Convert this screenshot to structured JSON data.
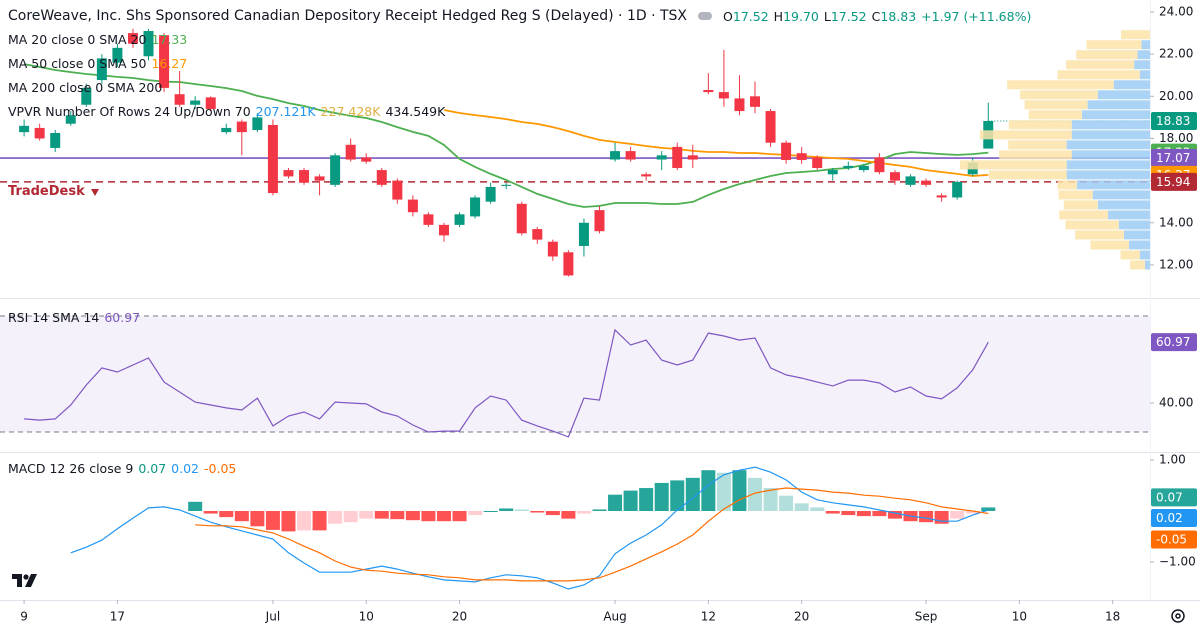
{
  "chart_data": [
    {
      "type": "candlestick",
      "title": "CoreWeave, Inc. Shs Sponsored Canadian Depository Receipt Hedged Reg S (Delayed) · 1D · TSX",
      "ohlc": [
        {
          "key": "O",
          "value": "17.52"
        },
        {
          "key": "H",
          "value": "19.70"
        },
        {
          "key": "L",
          "value": "17.52"
        },
        {
          "key": "C",
          "value": "18.83"
        }
      ],
      "change": "+1.97 (+11.68%)",
      "up_color": "#089981",
      "down_color": "#f23645",
      "open": [
        18.3,
        18.5,
        17.55,
        18.7,
        19.6,
        20.77,
        21.6,
        23.0,
        21.9,
        22.9,
        20.1,
        19.6,
        19.95,
        18.3,
        18.8,
        18.4,
        18.64,
        16.5,
        16.5,
        16.2,
        15.8,
        17.7,
        17.1,
        16.5,
        16.0,
        15.1,
        14.4,
        13.9,
        13.9,
        14.3,
        15.0,
        15.75,
        14.9,
        13.7,
        13.1,
        12.6,
        12.9,
        14.6,
        17.0,
        17.4,
        16.3,
        17.0,
        17.6,
        17.2,
        20.3,
        20.2,
        19.9,
        20.0,
        19.3,
        17.8,
        17.3,
        17.1,
        16.3,
        16.6,
        16.5,
        17.1,
        16.4,
        15.8,
        16.0,
        15.3,
        15.2,
        16.3,
        17.52
      ],
      "high": [
        18.9,
        18.7,
        18.4,
        19.3,
        20.6,
        22.0,
        22.5,
        23.2,
        23.2,
        23.0,
        21.2,
        20.0,
        20.0,
        18.7,
        18.9,
        19.2,
        18.9,
        16.6,
        16.6,
        16.3,
        17.3,
        18.0,
        17.3,
        16.6,
        16.1,
        15.3,
        14.5,
        14.0,
        14.5,
        15.3,
        15.9,
        15.9,
        15.0,
        13.8,
        13.2,
        12.7,
        14.2,
        14.8,
        17.8,
        17.6,
        16.4,
        17.4,
        17.8,
        17.7,
        21.1,
        22.2,
        21.0,
        20.7,
        19.4,
        17.9,
        17.6,
        17.2,
        16.6,
        16.9,
        16.8,
        17.3,
        16.5,
        16.3,
        16.1,
        15.4,
        16.0,
        17.1,
        19.7
      ],
      "low": [
        18.1,
        17.9,
        17.36,
        18.6,
        19.5,
        20.6,
        21.4,
        22.3,
        21.7,
        20.2,
        19.5,
        19.4,
        19.3,
        18.2,
        17.2,
        18.3,
        15.3,
        16.1,
        15.8,
        15.3,
        15.7,
        16.9,
        16.8,
        15.7,
        14.9,
        14.3,
        13.8,
        13.1,
        13.8,
        14.2,
        14.9,
        15.6,
        13.4,
        13.0,
        12.2,
        11.45,
        12.4,
        13.5,
        16.9,
        16.9,
        16.0,
        16.5,
        16.5,
        16.6,
        20.1,
        19.5,
        19.1,
        19.2,
        17.6,
        16.8,
        16.8,
        16.5,
        16.0,
        16.5,
        16.4,
        16.3,
        15.8,
        15.7,
        15.7,
        15.0,
        15.1,
        16.2,
        17.52
      ],
      "close": [
        18.6,
        18.0,
        18.26,
        19.1,
        20.4,
        21.8,
        22.3,
        22.5,
        23.1,
        20.4,
        19.6,
        19.8,
        19.4,
        18.5,
        18.3,
        19.0,
        15.41,
        16.2,
        15.9,
        16.0,
        17.2,
        17.0,
        16.9,
        15.8,
        15.1,
        14.5,
        13.9,
        13.4,
        14.4,
        15.2,
        15.7,
        15.8,
        13.5,
        13.2,
        12.4,
        11.5,
        14.0,
        13.6,
        17.4,
        17.0,
        16.2,
        17.2,
        16.6,
        17.0,
        20.2,
        19.9,
        19.3,
        19.5,
        17.8,
        16.98,
        16.98,
        16.6,
        16.5,
        16.7,
        16.7,
        16.4,
        16.0,
        16.2,
        15.8,
        15.2,
        15.94,
        16.86,
        18.83
      ],
      "series": [
        {
          "name": "MA 20 close 0 SMA 20",
          "color": "#4caf50",
          "values": [
            21.53,
            21.39,
            21.25,
            21.15,
            21.06,
            20.99,
            20.92,
            20.87,
            20.77,
            20.7,
            20.68,
            20.58,
            20.49,
            20.39,
            20.25,
            20.02,
            19.87,
            19.68,
            19.54,
            19.35,
            19.21,
            19.07,
            18.97,
            18.78,
            18.54,
            18.31,
            18.12,
            17.69,
            17.03,
            16.65,
            16.32,
            16.03,
            15.7,
            15.37,
            15.13,
            14.89,
            14.75,
            14.8,
            14.94,
            14.94,
            14.94,
            14.89,
            14.89,
            14.99,
            15.32,
            15.6,
            15.84,
            16.03,
            16.22,
            16.36,
            16.41,
            16.46,
            16.55,
            16.6,
            16.74,
            16.98,
            17.26,
            17.36,
            17.31,
            17.26,
            17.22,
            17.26,
            17.33
          ]
        },
        {
          "name": "MA 50 close 0 SMA 50",
          "color": "#ff9800",
          "values": [
            null,
            null,
            null,
            null,
            null,
            null,
            null,
            null,
            null,
            null,
            null,
            null,
            null,
            null,
            null,
            null,
            null,
            null,
            null,
            null,
            null,
            null,
            null,
            null,
            null,
            null,
            null,
            19.35,
            19.21,
            19.11,
            19.02,
            18.92,
            18.78,
            18.69,
            18.54,
            18.35,
            18.12,
            17.93,
            17.83,
            17.74,
            17.64,
            17.55,
            17.5,
            17.41,
            17.36,
            17.36,
            17.31,
            17.31,
            17.26,
            17.22,
            17.17,
            17.12,
            17.07,
            17.03,
            16.93,
            16.84,
            16.74,
            16.65,
            16.5,
            16.41,
            16.32,
            16.22,
            16.27
          ]
        }
      ],
      "levels": [
        {
          "name": "MA 200 close 0 SMA 200",
          "value": 17.07,
          "color": "#7e57c2",
          "style": "solid"
        },
        {
          "name": "TradeDesk",
          "value": 15.94,
          "color": "#b22833",
          "style": "dashed"
        }
      ],
      "profile": {
        "name": "VPVR Number Of Rows 24 Up/Down 70",
        "legend_values": [
          "207.121K",
          "227.428K",
          "434.549K"
        ],
        "up_color": "#9ccbf5",
        "down_color": "#fce3a8",
        "bins": [
          11.76,
          12.235,
          12.71,
          13.185,
          13.66,
          14.135,
          14.61,
          15.085,
          15.56,
          16.035,
          16.51,
          16.985,
          17.46,
          17.935,
          18.41,
          18.885,
          19.36,
          19.835,
          20.31,
          20.785,
          21.26,
          21.735,
          22.21,
          22.685,
          23.16
        ],
        "up": [
          0.9,
          1.8,
          3.7,
          4.6,
          5.5,
          7.4,
          9.2,
          10.1,
          12.9,
          14.7,
          14.7,
          13.8,
          14.7,
          13.8,
          13.8,
          12.0,
          11.0,
          9.2,
          6.4,
          1.8,
          2.8,
          2.2,
          1.5,
          0
        ],
        "down": [
          2.6,
          3.4,
          6.8,
          8.6,
          9.4,
          8.6,
          6.0,
          6.0,
          3.4,
          13.7,
          18.8,
          12.8,
          10.3,
          16.2,
          11.1,
          9.4,
          11.1,
          13.7,
          18.8,
          14.5,
          12.0,
          10.8,
          9.7,
          5.1
        ]
      },
      "xlim": [
        -1.55,
        72.4
      ],
      "xticks": [
        {
          "value": 0,
          "label": "9"
        },
        {
          "value": 6,
          "label": "17"
        },
        {
          "value": 16,
          "label": "Jul"
        },
        {
          "value": 22,
          "label": "10"
        },
        {
          "value": 28,
          "label": "20"
        },
        {
          "value": 38,
          "label": "Aug"
        },
        {
          "value": 44,
          "label": "12"
        },
        {
          "value": 50,
          "label": "20"
        },
        {
          "value": 58,
          "label": "Sep"
        },
        {
          "value": 64,
          "label": "10"
        },
        {
          "value": 70,
          "label": "18"
        }
      ],
      "ylim": [
        10.43,
        24.57
      ],
      "yticks": [
        {
          "value": 12,
          "label": "12.00"
        },
        {
          "value": 14,
          "label": "14.00"
        },
        {
          "value": 16,
          "label": "16.00"
        },
        {
          "value": 18,
          "label": "18.00"
        },
        {
          "value": 20,
          "label": "20.00"
        },
        {
          "value": 22,
          "label": "22.00"
        },
        {
          "value": 24,
          "label": "24.00"
        }
      ]
    },
    {
      "type": "line",
      "name": "RSI 14 SMA 14",
      "color": "#7e57c2",
      "band": [
        30,
        70
      ],
      "band_color": "#ede7f6",
      "values": [
        34.5,
        34.1,
        34.5,
        39.3,
        46.2,
        52.1,
        50.7,
        53.1,
        55.5,
        47.2,
        43.8,
        40.3,
        39.3,
        38.3,
        37.6,
        41.7,
        32.1,
        35.5,
        36.9,
        34.5,
        40.3,
        40.0,
        39.7,
        36.9,
        35.5,
        32.4,
        30.0,
        30.3,
        30.3,
        38.3,
        42.4,
        41.0,
        34.1,
        32.1,
        30.3,
        28.3,
        41.7,
        41.0,
        65.2,
        60.0,
        61.7,
        54.8,
        53.1,
        54.8,
        64.1,
        63.1,
        61.7,
        62.4,
        52.1,
        49.7,
        48.6,
        47.2,
        45.9,
        47.9,
        47.9,
        46.9,
        43.8,
        45.5,
        42.4,
        41.4,
        45.2,
        51.4,
        60.97
      ],
      "ylim": [
        23.1,
        74.48
      ],
      "yticks": [
        {
          "value": 40,
          "label": "40.00"
        }
      ]
    },
    {
      "type": "macd",
      "name": "MACD 12 26 close 9",
      "histogram_colors": [
        "#26a69a",
        "#b2dfdb",
        "#ffcdd2",
        "#ff5252"
      ],
      "histogram": [
        null,
        null,
        null,
        null,
        null,
        null,
        null,
        null,
        null,
        null,
        null,
        0.18,
        -0.05,
        -0.12,
        -0.2,
        -0.3,
        -0.37,
        -0.4,
        -0.38,
        -0.38,
        -0.25,
        -0.22,
        -0.15,
        -0.15,
        -0.16,
        -0.18,
        -0.2,
        -0.2,
        -0.2,
        -0.08,
        0.0,
        0.05,
        0.03,
        -0.03,
        -0.08,
        -0.15,
        -0.05,
        0.03,
        0.32,
        0.4,
        0.45,
        0.55,
        0.6,
        0.65,
        0.8,
        0.75,
        0.8,
        0.65,
        0.45,
        0.3,
        0.15,
        0.07,
        -0.05,
        -0.08,
        -0.1,
        -0.1,
        -0.15,
        -0.2,
        -0.22,
        -0.25,
        -0.15,
        -0.05,
        0.07
      ],
      "series": [
        {
          "name": "MACD",
          "color": "#2196f3",
          "values": [
            null,
            null,
            null,
            -0.82,
            -0.71,
            -0.57,
            -0.35,
            -0.14,
            0.06,
            0.08,
            0.02,
            -0.1,
            -0.22,
            -0.31,
            -0.39,
            -0.47,
            -0.55,
            -0.82,
            -1.02,
            -1.2,
            -1.2,
            -1.2,
            -1.14,
            -1.08,
            -1.14,
            -1.22,
            -1.29,
            -1.35,
            -1.37,
            -1.39,
            -1.31,
            -1.25,
            -1.27,
            -1.31,
            -1.41,
            -1.53,
            -1.45,
            -1.27,
            -0.84,
            -0.63,
            -0.47,
            -0.27,
            0.02,
            0.25,
            0.51,
            0.71,
            0.8,
            0.86,
            0.76,
            0.61,
            0.37,
            0.22,
            0.16,
            0.12,
            0.08,
            0.02,
            -0.04,
            -0.1,
            -0.14,
            -0.2,
            -0.2,
            -0.08,
            0.02
          ]
        },
        {
          "name": "Signal",
          "color": "#ff6d00",
          "values": [
            null,
            null,
            null,
            null,
            null,
            null,
            null,
            null,
            null,
            null,
            null,
            -0.27,
            -0.29,
            -0.29,
            -0.31,
            -0.37,
            -0.43,
            -0.55,
            -0.69,
            -0.82,
            -0.98,
            -1.1,
            -1.16,
            -1.18,
            -1.22,
            -1.24,
            -1.25,
            -1.29,
            -1.31,
            -1.35,
            -1.35,
            -1.35,
            -1.37,
            -1.37,
            -1.37,
            -1.37,
            -1.35,
            -1.31,
            -1.2,
            -1.08,
            -0.94,
            -0.8,
            -0.65,
            -0.47,
            -0.2,
            0.04,
            0.22,
            0.35,
            0.41,
            0.45,
            0.43,
            0.41,
            0.37,
            0.35,
            0.31,
            0.29,
            0.25,
            0.22,
            0.16,
            0.08,
            0.04,
            0.0,
            -0.05
          ]
        }
      ],
      "ylim": [
        -1.745,
        1.137
      ],
      "yticks": [
        {
          "value": -1,
          "label": "−1.00"
        },
        {
          "value": 1,
          "label": "1.00"
        }
      ]
    }
  ]
}
